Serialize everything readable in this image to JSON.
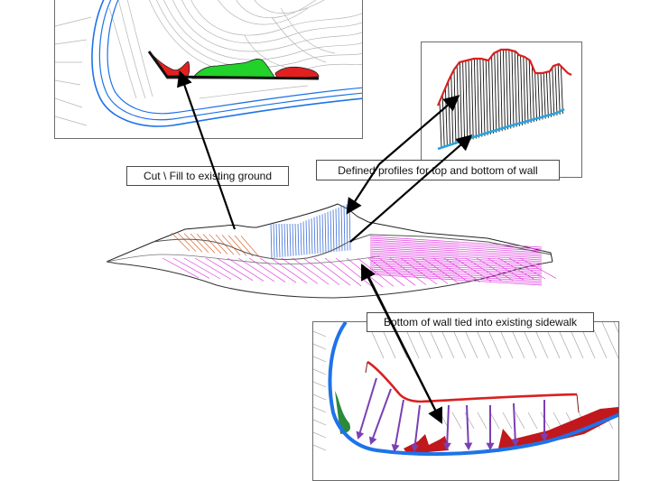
{
  "callouts": {
    "cut_fill": "Cut \\ Fill to existing ground",
    "profiles": "Defined profiles for top and bottom of wall",
    "sidewalk": "Bottom of wall tied into existing sidewalk"
  },
  "colors": {
    "road_blue": "#1e73e8",
    "cut_red": "#d92020",
    "fill_green": "#22d12a",
    "wall_dark_red": "#c0181c",
    "grade_magenta": "#e040e0",
    "arrow_purple": "#7b3fb4",
    "sidewalk_green": "#2b8a3a",
    "contour_gray": "#9a9a9a"
  }
}
